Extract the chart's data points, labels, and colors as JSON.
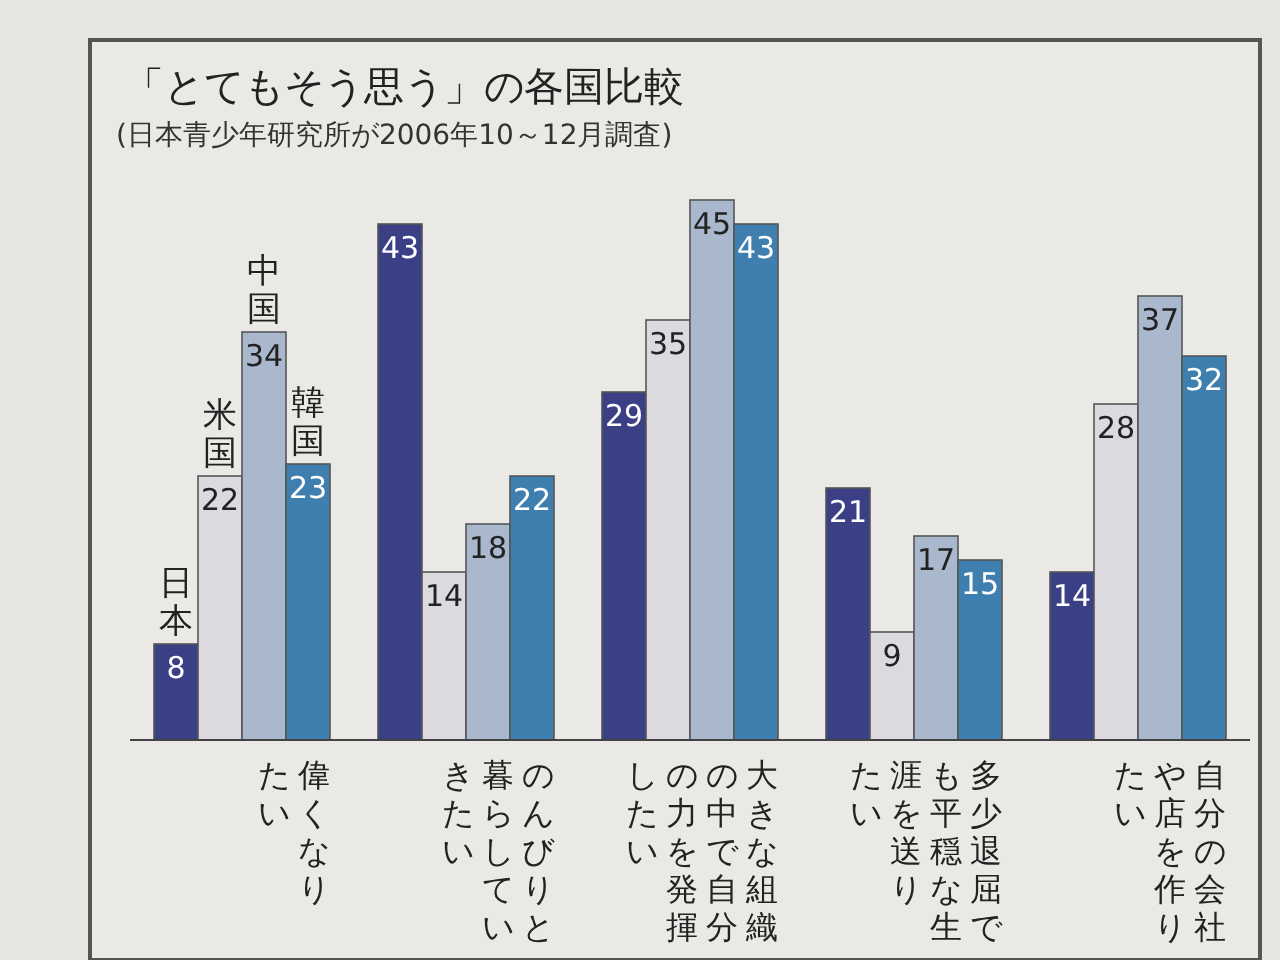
{
  "chart_data": {
    "type": "bar",
    "title": "「とてもそう思う」の各国比較",
    "subtitle": "(日本青少年研究所が2006年10～12月調査)",
    "categories": [
      "偉くなりたい",
      "のんびりと暮らしていきたい",
      "大きな組織の中で自分の力を発揮したい",
      "多少退屈でも平穏な生涯を送りたい",
      "自分の会社や店を作りたい"
    ],
    "series": [
      {
        "name": "日本",
        "color": "#3a3f86",
        "values": [
          8,
          43,
          29,
          21,
          14
        ]
      },
      {
        "name": "米国",
        "color": "#dcdade",
        "values": [
          22,
          14,
          35,
          9,
          28
        ]
      },
      {
        "name": "中国",
        "color": "#a9b8cc",
        "values": [
          34,
          18,
          45,
          17,
          37
        ]
      },
      {
        "name": "韓国",
        "color": "#3f7fb0",
        "values": [
          23,
          22,
          43,
          15,
          32
        ]
      }
    ],
    "data_labels": true
  }
}
